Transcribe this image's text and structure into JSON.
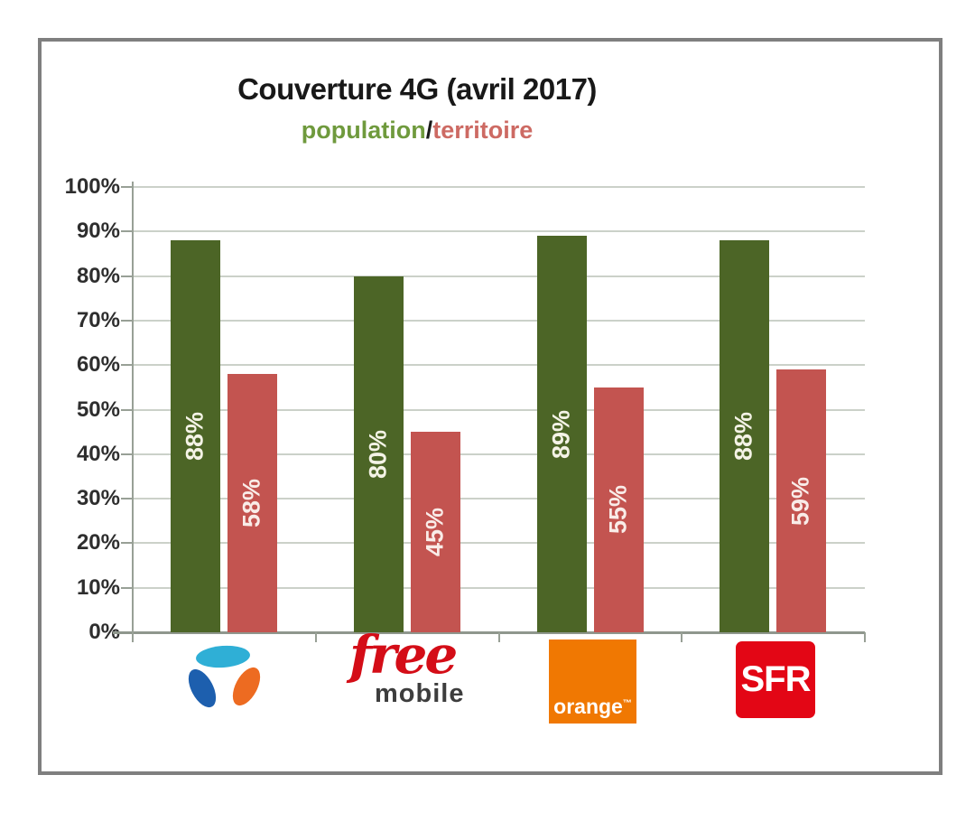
{
  "chart_data": {
    "type": "bar",
    "title": "Couverture 4G (avril 2017)",
    "subtitle": {
      "population_label": "population",
      "separator": "/",
      "territoire_label": "territoire",
      "population_color": "#6f9a3d",
      "separator_color": "#1a1a1a",
      "territoire_color": "#cd6a63"
    },
    "categories": [
      "Bouygues Telecom",
      "Free Mobile",
      "Orange",
      "SFR"
    ],
    "series": [
      {
        "name": "population",
        "color": "#4c6526",
        "label_color": "#f4f3e6",
        "values": [
          88,
          80,
          89,
          88
        ],
        "labels": [
          "88%",
          "80%",
          "89%",
          "88%"
        ]
      },
      {
        "name": "territoire",
        "color": "#c35450",
        "label_color": "#f9ece8",
        "values": [
          58,
          45,
          55,
          59
        ],
        "labels": [
          "58%",
          "45%",
          "55%",
          "59%"
        ]
      }
    ],
    "y_axis": {
      "min": 0,
      "max": 100,
      "step": 10,
      "tick_labels": [
        "0%",
        "10%",
        "20%",
        "30%",
        "40%",
        "50%",
        "60%",
        "70%",
        "80%",
        "90%",
        "100%"
      ]
    },
    "grid": true,
    "legend_position": "subtitle-inline",
    "bar_label_rotation": -90
  },
  "logos": {
    "bouygues": {
      "alt": "Bouygues Telecom",
      "petal_top_color": "#2fafd6",
      "petal_left_color": "#1d5fae",
      "petal_right_color": "#ed6b21"
    },
    "free": {
      "word1": "free",
      "word2": "mobile",
      "word1_color": "#d40d17",
      "word2_color": "#3d3d3d"
    },
    "orange": {
      "label": "orange",
      "trademark": "™",
      "bg_color": "#f07802",
      "text_color": "#ffffff"
    },
    "sfr": {
      "label": "SFR",
      "bg_color": "#e30615",
      "text_color": "#ffffff"
    }
  }
}
